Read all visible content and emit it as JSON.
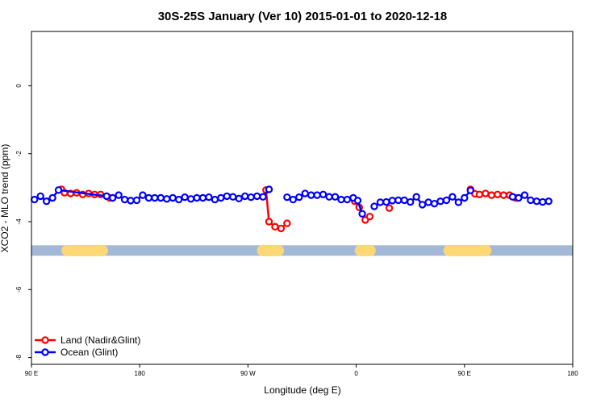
{
  "chart_data": {
    "type": "line",
    "title": "30S-25S January (Ver 10)   2015-01-01 to 2020-12-18",
    "xlabel": "Longitude (deg E)",
    "ylabel": "XCO2 - MLO trend (ppm)",
    "xlim": [
      90,
      450
    ],
    "ylim": [
      -8.2,
      1.6
    ],
    "x_ticks": [
      {
        "value": 90,
        "label": "90 E"
      },
      {
        "value": 162,
        "label": "180"
      },
      {
        "value": 234,
        "label": "90 W"
      },
      {
        "value": 306,
        "label": "0"
      },
      {
        "value": 378,
        "label": "90 E"
      },
      {
        "value": 450,
        "label": "180"
      }
    ],
    "y_ticks": [
      {
        "value": 0,
        "label": "0"
      },
      {
        "value": -2,
        "label": "-2"
      },
      {
        "value": -4,
        "label": "-4"
      },
      {
        "value": -6,
        "label": "-6"
      },
      {
        "value": -8,
        "label": "-8"
      }
    ],
    "legend": {
      "position": "bottom-left"
    },
    "land_ocean_band": {
      "y": -4.85,
      "ocean_color": "#a3b8d6",
      "land_color": "#fcd874",
      "land_segments": [
        [
          110,
          141
        ],
        [
          240,
          258
        ],
        [
          305,
          319
        ],
        [
          364,
          396
        ]
      ]
    },
    "series": [
      {
        "name": "Land (Nadir&Glint)",
        "color": "#ff0000",
        "segments": [
          [
            [
              110,
              -3.05
            ],
            [
              112,
              -3.15
            ],
            [
              116,
              -3.17
            ],
            [
              120,
              -3.15
            ],
            [
              124,
              -3.2
            ],
            [
              128,
              -3.17
            ],
            [
              132,
              -3.2
            ],
            [
              136,
              -3.2
            ],
            [
              140,
              -3.25
            ],
            [
              142,
              -3.3
            ]
          ],
          [
            [
              246,
              -3.07
            ],
            [
              248,
              -4.0
            ],
            [
              252,
              -4.15
            ],
            [
              256,
              -4.2
            ],
            [
              260,
              -4.05
            ]
          ],
          [
            [
              305,
              -3.4
            ],
            [
              308,
              -3.58
            ],
            [
              312,
              -3.95
            ],
            [
              315,
              -3.85
            ]
          ],
          [
            [
              328,
              -3.6
            ]
          ],
          [
            [
              382,
              -3.05
            ],
            [
              385,
              -3.18
            ],
            [
              388,
              -3.2
            ],
            [
              392,
              -3.17
            ],
            [
              396,
              -3.22
            ],
            [
              400,
              -3.2
            ],
            [
              404,
              -3.22
            ],
            [
              408,
              -3.22
            ],
            [
              412,
              -3.3
            ]
          ]
        ]
      },
      {
        "name": "Ocean (Glint)",
        "color": "#0000ff",
        "segments": [
          [
            [
              92,
              -3.35
            ],
            [
              96,
              -3.25
            ],
            [
              100,
              -3.4
            ],
            [
              104,
              -3.3
            ],
            [
              108,
              -3.07
            ],
            [
              140,
              -3.25
            ],
            [
              144,
              -3.3
            ],
            [
              148,
              -3.22
            ],
            [
              152,
              -3.35
            ],
            [
              156,
              -3.38
            ],
            [
              160,
              -3.37
            ],
            [
              164,
              -3.22
            ],
            [
              168,
              -3.3
            ],
            [
              172,
              -3.3
            ],
            [
              176,
              -3.3
            ],
            [
              180,
              -3.33
            ],
            [
              184,
              -3.3
            ],
            [
              188,
              -3.35
            ],
            [
              192,
              -3.28
            ],
            [
              196,
              -3.33
            ],
            [
              200,
              -3.3
            ],
            [
              204,
              -3.3
            ],
            [
              208,
              -3.28
            ],
            [
              212,
              -3.35
            ],
            [
              216,
              -3.3
            ],
            [
              220,
              -3.25
            ],
            [
              224,
              -3.27
            ],
            [
              228,
              -3.32
            ],
            [
              232,
              -3.25
            ],
            [
              236,
              -3.28
            ],
            [
              240,
              -3.25
            ],
            [
              244,
              -3.27
            ],
            [
              248,
              -3.05
            ]
          ],
          [
            [
              260,
              -3.28
            ],
            [
              264,
              -3.35
            ],
            [
              268,
              -3.28
            ],
            [
              272,
              -3.17
            ],
            [
              276,
              -3.22
            ],
            [
              280,
              -3.22
            ],
            [
              284,
              -3.2
            ],
            [
              288,
              -3.27
            ],
            [
              292,
              -3.27
            ],
            [
              296,
              -3.35
            ],
            [
              300,
              -3.35
            ],
            [
              304,
              -3.3
            ],
            [
              307,
              -3.38
            ],
            [
              310,
              -3.77
            ]
          ],
          [
            [
              318,
              -3.55
            ],
            [
              322,
              -3.43
            ],
            [
              326,
              -3.42
            ],
            [
              330,
              -3.38
            ],
            [
              334,
              -3.37
            ],
            [
              338,
              -3.37
            ],
            [
              342,
              -3.42
            ],
            [
              346,
              -3.27
            ],
            [
              350,
              -3.5
            ],
            [
              354,
              -3.43
            ],
            [
              358,
              -3.47
            ],
            [
              362,
              -3.4
            ],
            [
              366,
              -3.37
            ],
            [
              370,
              -3.27
            ],
            [
              374,
              -3.43
            ],
            [
              378,
              -3.3
            ],
            [
              382,
              -3.08
            ]
          ],
          [
            [
              410,
              -3.27
            ],
            [
              414,
              -3.3
            ],
            [
              418,
              -3.22
            ],
            [
              422,
              -3.37
            ],
            [
              426,
              -3.4
            ],
            [
              430,
              -3.42
            ],
            [
              434,
              -3.4
            ]
          ]
        ]
      }
    ]
  }
}
